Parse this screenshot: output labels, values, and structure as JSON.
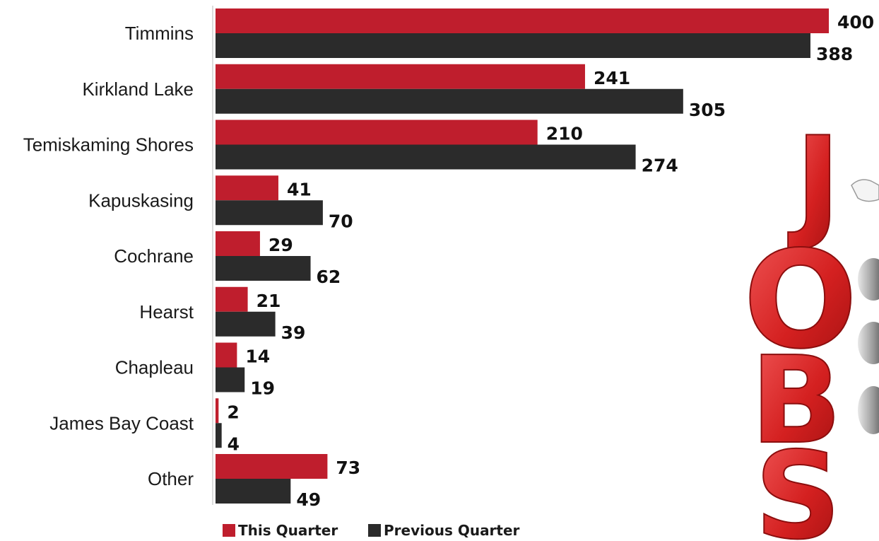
{
  "chart_data": {
    "type": "bar",
    "orientation": "horizontal",
    "categories": [
      "Timmins",
      "Kirkland Lake",
      "Temiskaming Shores",
      "Kapuskasing",
      "Cochrane",
      "Hearst",
      "Chapleau",
      "James Bay Coast",
      "Other"
    ],
    "series": [
      {
        "name": "This Quarter",
        "color": "#bf1e2d",
        "values": [
          400,
          241,
          210,
          41,
          29,
          21,
          14,
          2,
          73
        ]
      },
      {
        "name": "Previous Quarter",
        "color": "#2b2b2b",
        "values": [
          388,
          305,
          274,
          70,
          62,
          39,
          19,
          4,
          49
        ]
      }
    ],
    "title": "",
    "xlabel": "",
    "ylabel": "",
    "xlim": [
      0,
      400
    ],
    "grid": false,
    "legend": "bottom",
    "data_labels": true
  },
  "decoration": {
    "image": "jobs-letters-illustration",
    "letters": [
      "J",
      "O",
      "B",
      "S"
    ],
    "letter_color": "#e02a2a"
  }
}
